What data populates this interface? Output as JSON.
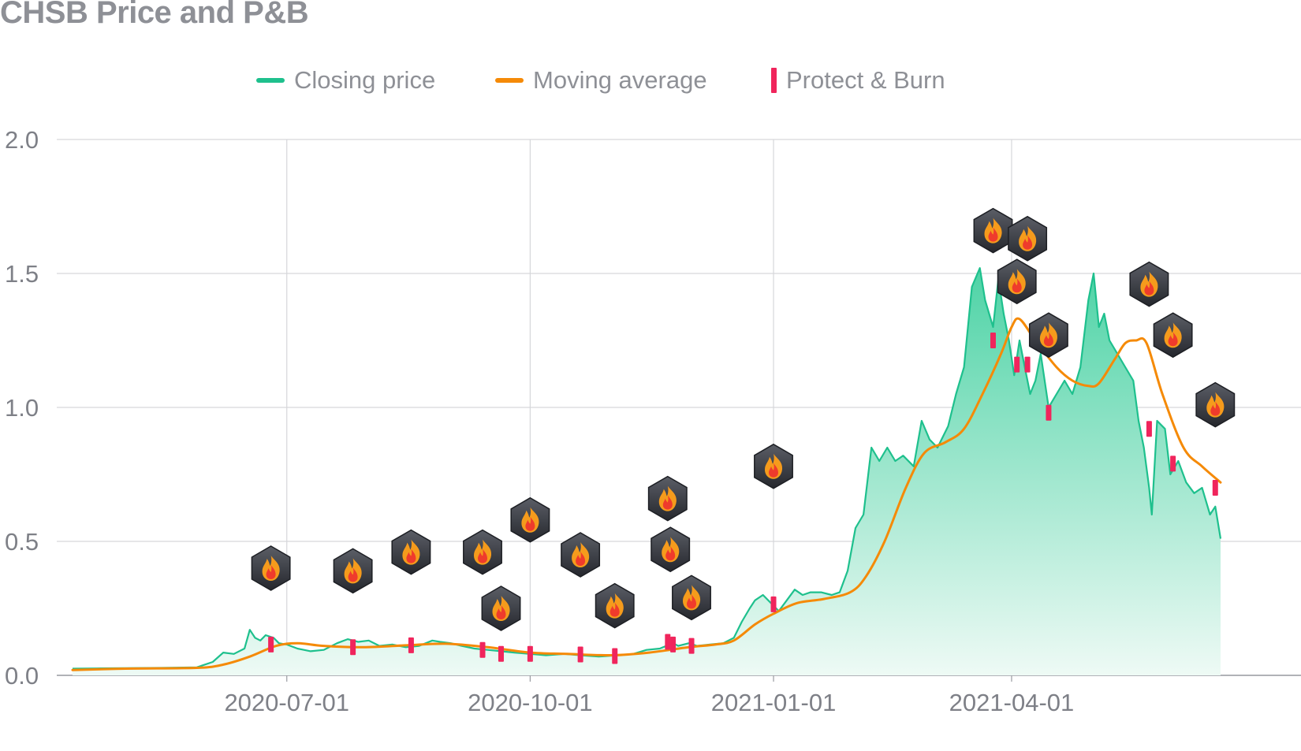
{
  "title": "CHSB Price and P&B",
  "legend": [
    {
      "label": "Closing price",
      "color": "#1ec08d",
      "kind": "line"
    },
    {
      "label": "Moving average",
      "color": "#f58a07",
      "kind": "line"
    },
    {
      "label": "Protect & Burn",
      "color": "#f0255c",
      "kind": "bar"
    }
  ],
  "colors": {
    "closing_line": "#1ec08d",
    "area_top": "#4ed3a6",
    "area_bottom": "#eefaf5",
    "moving_avg": "#f58a07",
    "burn_marker": "#f0255c",
    "grid": "#d6d7da",
    "axis_text": "#7e8087",
    "badge_dark": "#2f3138",
    "flame_outer": "#f59b1c",
    "flame_inner": "#ef3b2c"
  },
  "chart_data": {
    "type": "line",
    "title": "CHSB Price and P&B",
    "xlabel": "",
    "ylabel": "",
    "x_range": [
      "2020-04-11",
      "2021-06-19"
    ],
    "ylim": [
      0,
      2.0
    ],
    "y_ticks": [
      "0.0",
      "0.5",
      "1.0",
      "1.5",
      "2.0"
    ],
    "y_tick_values": [
      0,
      0.5,
      1.0,
      1.5,
      2.0
    ],
    "x_ticks": [
      "2020-07-01",
      "2020-10-01",
      "2021-01-01",
      "2021-04-01"
    ],
    "grid": true,
    "legend_position": "top-center",
    "series": [
      {
        "name": "Closing price",
        "kind": "area-line",
        "points": [
          [
            "2020-04-11",
            0.025
          ],
          [
            "2020-04-20",
            0.026
          ],
          [
            "2020-05-01",
            0.027
          ],
          [
            "2020-05-15",
            0.028
          ],
          [
            "2020-05-28",
            0.03
          ],
          [
            "2020-06-03",
            0.05
          ],
          [
            "2020-06-07",
            0.085
          ],
          [
            "2020-06-11",
            0.08
          ],
          [
            "2020-06-15",
            0.1
          ],
          [
            "2020-06-17",
            0.17
          ],
          [
            "2020-06-19",
            0.14
          ],
          [
            "2020-06-21",
            0.13
          ],
          [
            "2020-06-23",
            0.15
          ],
          [
            "2020-06-26",
            0.14
          ],
          [
            "2020-06-28",
            0.12
          ],
          [
            "2020-07-01",
            0.115
          ],
          [
            "2020-07-05",
            0.1
          ],
          [
            "2020-07-10",
            0.09
          ],
          [
            "2020-07-15",
            0.095
          ],
          [
            "2020-07-20",
            0.12
          ],
          [
            "2020-07-24",
            0.135
          ],
          [
            "2020-07-28",
            0.125
          ],
          [
            "2020-08-01",
            0.13
          ],
          [
            "2020-08-05",
            0.11
          ],
          [
            "2020-08-10",
            0.115
          ],
          [
            "2020-08-15",
            0.105
          ],
          [
            "2020-08-20",
            0.11
          ],
          [
            "2020-08-25",
            0.13
          ],
          [
            "2020-08-28",
            0.125
          ],
          [
            "2020-09-01",
            0.12
          ],
          [
            "2020-09-05",
            0.11
          ],
          [
            "2020-09-10",
            0.1
          ],
          [
            "2020-09-15",
            0.095
          ],
          [
            "2020-09-20",
            0.09
          ],
          [
            "2020-09-25",
            0.085
          ],
          [
            "2020-10-01",
            0.08
          ],
          [
            "2020-10-07",
            0.075
          ],
          [
            "2020-10-14",
            0.08
          ],
          [
            "2020-10-20",
            0.075
          ],
          [
            "2020-10-27",
            0.07
          ],
          [
            "2020-11-03",
            0.075
          ],
          [
            "2020-11-09",
            0.08
          ],
          [
            "2020-11-14",
            0.095
          ],
          [
            "2020-11-19",
            0.1
          ],
          [
            "2020-11-24",
            0.12
          ],
          [
            "2020-11-26",
            0.11
          ],
          [
            "2020-11-30",
            0.12
          ],
          [
            "2020-12-03",
            0.11
          ],
          [
            "2020-12-08",
            0.115
          ],
          [
            "2020-12-13",
            0.12
          ],
          [
            "2020-12-17",
            0.14
          ],
          [
            "2020-12-20",
            0.2
          ],
          [
            "2020-12-23",
            0.25
          ],
          [
            "2020-12-25",
            0.28
          ],
          [
            "2020-12-28",
            0.3
          ],
          [
            "2020-12-31",
            0.27
          ],
          [
            "2021-01-03",
            0.24
          ],
          [
            "2021-01-06",
            0.28
          ],
          [
            "2021-01-09",
            0.32
          ],
          [
            "2021-01-12",
            0.3
          ],
          [
            "2021-01-15",
            0.31
          ],
          [
            "2021-01-19",
            0.31
          ],
          [
            "2021-01-23",
            0.3
          ],
          [
            "2021-01-26",
            0.31
          ],
          [
            "2021-01-29",
            0.39
          ],
          [
            "2021-02-01",
            0.55
          ],
          [
            "2021-02-04",
            0.6
          ],
          [
            "2021-02-07",
            0.85
          ],
          [
            "2021-02-10",
            0.8
          ],
          [
            "2021-02-13",
            0.85
          ],
          [
            "2021-02-16",
            0.8
          ],
          [
            "2021-02-19",
            0.82
          ],
          [
            "2021-02-23",
            0.78
          ],
          [
            "2021-02-26",
            0.95
          ],
          [
            "2021-03-01",
            0.88
          ],
          [
            "2021-03-04",
            0.85
          ],
          [
            "2021-03-08",
            0.93
          ],
          [
            "2021-03-11",
            1.05
          ],
          [
            "2021-03-14",
            1.15
          ],
          [
            "2021-03-17",
            1.45
          ],
          [
            "2021-03-20",
            1.52
          ],
          [
            "2021-03-22",
            1.4
          ],
          [
            "2021-03-25",
            1.3
          ],
          [
            "2021-03-27",
            1.48
          ],
          [
            "2021-03-29",
            1.35
          ],
          [
            "2021-03-31",
            1.25
          ],
          [
            "2021-04-02",
            1.12
          ],
          [
            "2021-04-04",
            1.25
          ],
          [
            "2021-04-06",
            1.15
          ],
          [
            "2021-04-08",
            1.05
          ],
          [
            "2021-04-10",
            1.1
          ],
          [
            "2021-04-12",
            1.2
          ],
          [
            "2021-04-15",
            1.0
          ],
          [
            "2021-04-18",
            1.05
          ],
          [
            "2021-04-21",
            1.1
          ],
          [
            "2021-04-24",
            1.05
          ],
          [
            "2021-04-27",
            1.15
          ],
          [
            "2021-04-30",
            1.4
          ],
          [
            "2021-05-02",
            1.5
          ],
          [
            "2021-05-04",
            1.3
          ],
          [
            "2021-05-06",
            1.35
          ],
          [
            "2021-05-08",
            1.25
          ],
          [
            "2021-05-11",
            1.2
          ],
          [
            "2021-05-14",
            1.15
          ],
          [
            "2021-05-17",
            1.1
          ],
          [
            "2021-05-19",
            0.95
          ],
          [
            "2021-05-21",
            0.85
          ],
          [
            "2021-05-23",
            0.7
          ],
          [
            "2021-05-24",
            0.6
          ],
          [
            "2021-05-26",
            0.95
          ],
          [
            "2021-05-29",
            0.92
          ],
          [
            "2021-05-31",
            0.75
          ],
          [
            "2021-06-03",
            0.8
          ],
          [
            "2021-06-06",
            0.72
          ],
          [
            "2021-06-09",
            0.68
          ],
          [
            "2021-06-12",
            0.7
          ],
          [
            "2021-06-15",
            0.6
          ],
          [
            "2021-06-17",
            0.63
          ],
          [
            "2021-06-19",
            0.51
          ]
        ]
      },
      {
        "name": "Moving average",
        "kind": "line",
        "points": [
          [
            "2020-04-11",
            0.02
          ],
          [
            "2020-05-01",
            0.025
          ],
          [
            "2020-05-28",
            0.028
          ],
          [
            "2020-06-07",
            0.04
          ],
          [
            "2020-06-17",
            0.07
          ],
          [
            "2020-06-27",
            0.11
          ],
          [
            "2020-07-05",
            0.12
          ],
          [
            "2020-07-15",
            0.11
          ],
          [
            "2020-07-30",
            0.105
          ],
          [
            "2020-08-15",
            0.112
          ],
          [
            "2020-08-30",
            0.118
          ],
          [
            "2020-09-15",
            0.105
          ],
          [
            "2020-10-01",
            0.085
          ],
          [
            "2020-10-15",
            0.08
          ],
          [
            "2020-11-01",
            0.075
          ],
          [
            "2020-11-15",
            0.085
          ],
          [
            "2020-11-30",
            0.105
          ],
          [
            "2020-12-10",
            0.115
          ],
          [
            "2020-12-17",
            0.13
          ],
          [
            "2020-12-25",
            0.19
          ],
          [
            "2021-01-01",
            0.23
          ],
          [
            "2021-01-10",
            0.27
          ],
          [
            "2021-01-20",
            0.285
          ],
          [
            "2021-01-30",
            0.31
          ],
          [
            "2021-02-05",
            0.37
          ],
          [
            "2021-02-12",
            0.5
          ],
          [
            "2021-02-20",
            0.7
          ],
          [
            "2021-02-27",
            0.83
          ],
          [
            "2021-03-07",
            0.87
          ],
          [
            "2021-03-14",
            0.92
          ],
          [
            "2021-03-21",
            1.05
          ],
          [
            "2021-03-28",
            1.2
          ],
          [
            "2021-04-01",
            1.3
          ],
          [
            "2021-04-04",
            1.33
          ],
          [
            "2021-04-10",
            1.25
          ],
          [
            "2021-04-18",
            1.15
          ],
          [
            "2021-04-24",
            1.1
          ],
          [
            "2021-04-30",
            1.08
          ],
          [
            "2021-05-04",
            1.09
          ],
          [
            "2021-05-10",
            1.18
          ],
          [
            "2021-05-14",
            1.24
          ],
          [
            "2021-05-18",
            1.25
          ],
          [
            "2021-05-22",
            1.24
          ],
          [
            "2021-05-28",
            1.05
          ],
          [
            "2021-06-05",
            0.85
          ],
          [
            "2021-06-12",
            0.78
          ],
          [
            "2021-06-19",
            0.72
          ]
        ]
      }
    ],
    "protect_and_burn_events": [
      {
        "date": "2020-06-25",
        "price": 0.115
      },
      {
        "date": "2020-07-26",
        "price": 0.105
      },
      {
        "date": "2020-08-17",
        "price": 0.112
      },
      {
        "date": "2020-09-13",
        "price": 0.095
      },
      {
        "date": "2020-09-20",
        "price": 0.08
      },
      {
        "date": "2020-10-01",
        "price": 0.08
      },
      {
        "date": "2020-10-20",
        "price": 0.078
      },
      {
        "date": "2020-11-02",
        "price": 0.072
      },
      {
        "date": "2020-11-22",
        "price": 0.125
      },
      {
        "date": "2020-11-24",
        "price": 0.115
      },
      {
        "date": "2020-12-01",
        "price": 0.11
      },
      {
        "date": "2021-01-01",
        "price": 0.265
      },
      {
        "date": "2021-03-25",
        "price": 1.25
      },
      {
        "date": "2021-04-03",
        "price": 1.16
      },
      {
        "date": "2021-04-07",
        "price": 1.16
      },
      {
        "date": "2021-04-15",
        "price": 0.98
      },
      {
        "date": "2021-05-23",
        "price": 0.92
      },
      {
        "date": "2021-06-01",
        "price": 0.79
      },
      {
        "date": "2021-06-17",
        "price": 0.7
      }
    ],
    "burn_badges": [
      {
        "date": "2020-06-25",
        "price": 0.4
      },
      {
        "date": "2020-07-26",
        "price": 0.39
      },
      {
        "date": "2020-08-17",
        "price": 0.46
      },
      {
        "date": "2020-09-13",
        "price": 0.46
      },
      {
        "date": "2020-09-20",
        "price": 0.25
      },
      {
        "date": "2020-10-01",
        "price": 0.58
      },
      {
        "date": "2020-10-20",
        "price": 0.45
      },
      {
        "date": "2020-11-02",
        "price": 0.26
      },
      {
        "date": "2020-11-22",
        "price": 0.66
      },
      {
        "date": "2020-11-23",
        "price": 0.47
      },
      {
        "date": "2020-12-01",
        "price": 0.29
      },
      {
        "date": "2021-01-01",
        "price": 0.78
      },
      {
        "date": "2021-03-25",
        "price": 1.66
      },
      {
        "date": "2021-04-03",
        "price": 1.47
      },
      {
        "date": "2021-04-07",
        "price": 1.63
      },
      {
        "date": "2021-04-15",
        "price": 1.27
      },
      {
        "date": "2021-05-23",
        "price": 1.46
      },
      {
        "date": "2021-06-01",
        "price": 1.27
      },
      {
        "date": "2021-06-17",
        "price": 1.01
      }
    ]
  }
}
